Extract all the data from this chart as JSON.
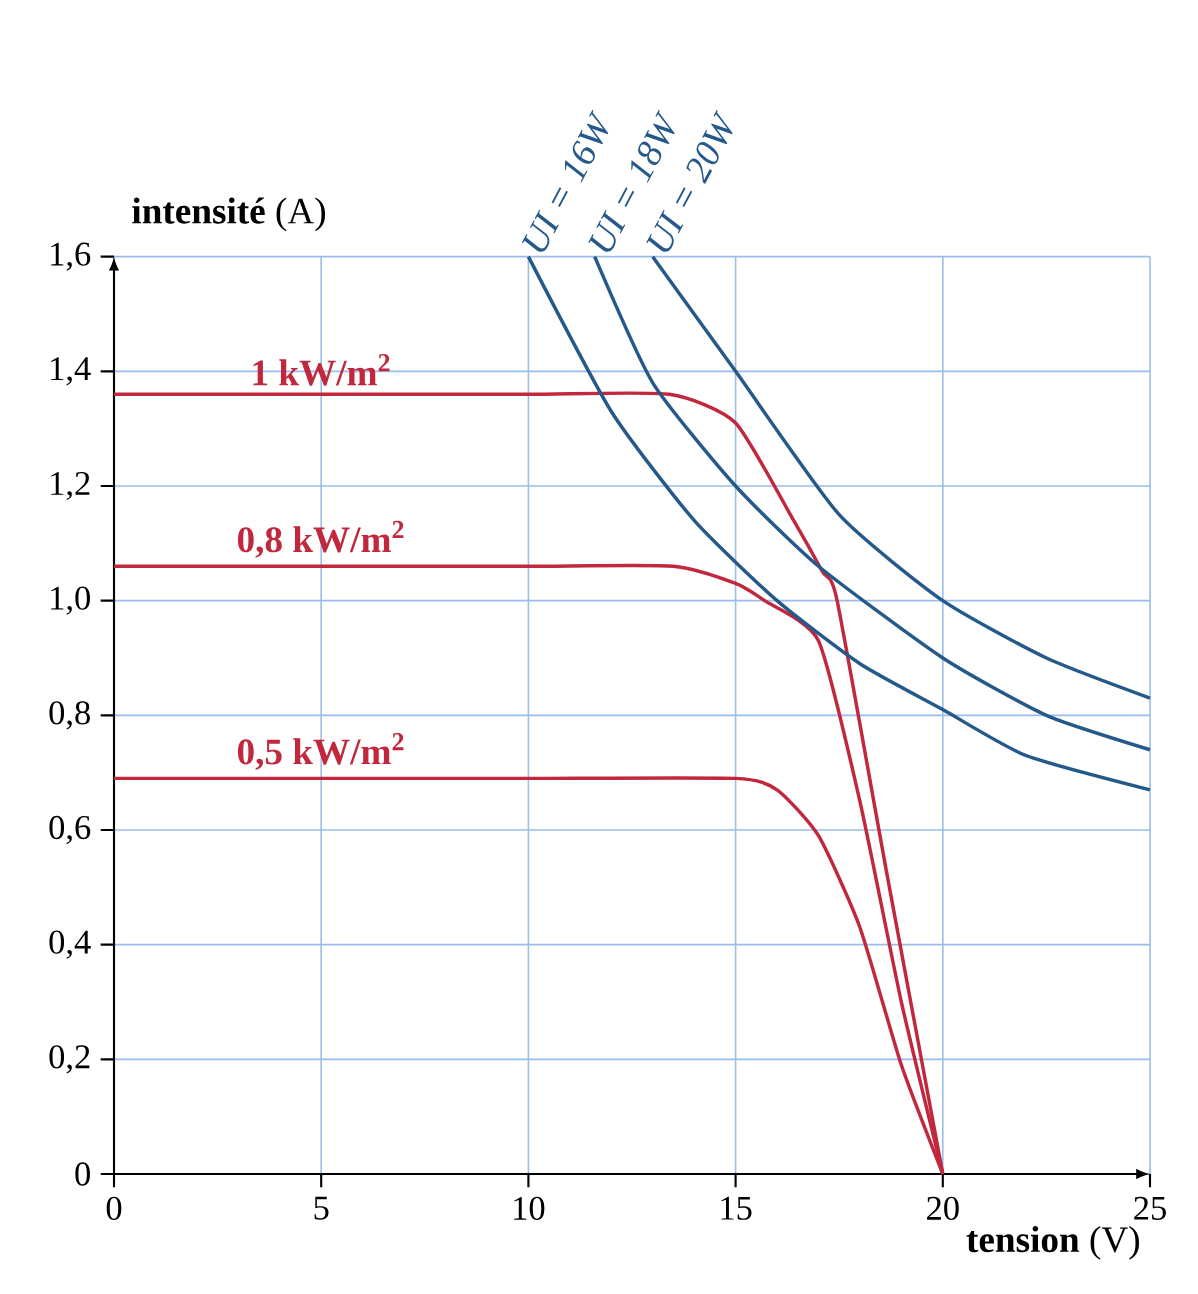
{
  "chart_data": {
    "type": "line",
    "xlabel": "**tension** (V)",
    "ylabel": "**intensité** (A)",
    "xlim": [
      0,
      25
    ],
    "ylim": [
      0,
      1.6
    ],
    "xticks": [
      0,
      5,
      10,
      15,
      20,
      25
    ],
    "yticks": [
      0,
      {
        "value": 0.2,
        "label": "0,2"
      },
      {
        "value": 0.4,
        "label": "0,4"
      },
      {
        "value": 0.6,
        "label": "0,6"
      },
      {
        "value": 0.8,
        "label": "0,8"
      },
      {
        "value": 1.0,
        "label": "1,0"
      },
      {
        "value": 1.2,
        "label": "1,2"
      },
      {
        "value": 1.4,
        "label": "1,4"
      },
      {
        "value": 1.6,
        "label": "1,6"
      }
    ],
    "grid": true,
    "legend": false,
    "marker": "none",
    "line_style": "solid",
    "series": [
      {
        "name": "1 kW/m$^{2}$",
        "color": "#c1273d",
        "x": [
          0,
          5,
          10,
          13.4,
          15,
          16.4,
          17.1,
          17.45,
          18.66,
          20
        ],
        "values": [
          1.36,
          1.36,
          1.36,
          1.36,
          1.31,
          1.14,
          1.05,
          1.0,
          0.52,
          0
        ]
      },
      {
        "name": "0,8 kW/m$^{2}$",
        "color": "#c1273d",
        "x": [
          0,
          5,
          10,
          13.5,
          15,
          15.7,
          17,
          18,
          19,
          20
        ],
        "values": [
          1.06,
          1.06,
          1.06,
          1.06,
          1.03,
          1.0,
          0.93,
          0.65,
          0.3,
          0
        ]
      },
      {
        "name": "0,5 kW/m$^{2}$",
        "color": "#c1273d",
        "x": [
          0,
          5,
          10,
          15,
          16,
          17,
          18,
          19,
          20
        ],
        "values": [
          0.69,
          0.69,
          0.69,
          0.69,
          0.67,
          0.59,
          0.43,
          0.19,
          0
        ]
      },
      {
        "name": "UI = 16W",
        "color": "#24598a",
        "x": [
          10,
          12,
          14,
          16,
          18,
          20,
          22,
          25
        ],
        "values": [
          1.6,
          1.33,
          1.14,
          1.0,
          0.89,
          0.81,
          0.73,
          0.67
        ]
      },
      {
        "name": "UI = 18W",
        "color": "#24598a",
        "x": [
          11.6,
          13,
          15,
          17,
          20,
          22.5,
          25
        ],
        "values": [
          1.6,
          1.38,
          1.2,
          1.06,
          0.9,
          0.8,
          0.74
        ]
      },
      {
        "name": "UI = 20W",
        "color": "#24598a",
        "x": [
          13,
          15,
          17.5,
          20,
          22.5,
          25
        ],
        "values": [
          1.6,
          1.4,
          1.15,
          1.0,
          0.9,
          0.83
        ]
      }
    ]
  }
}
